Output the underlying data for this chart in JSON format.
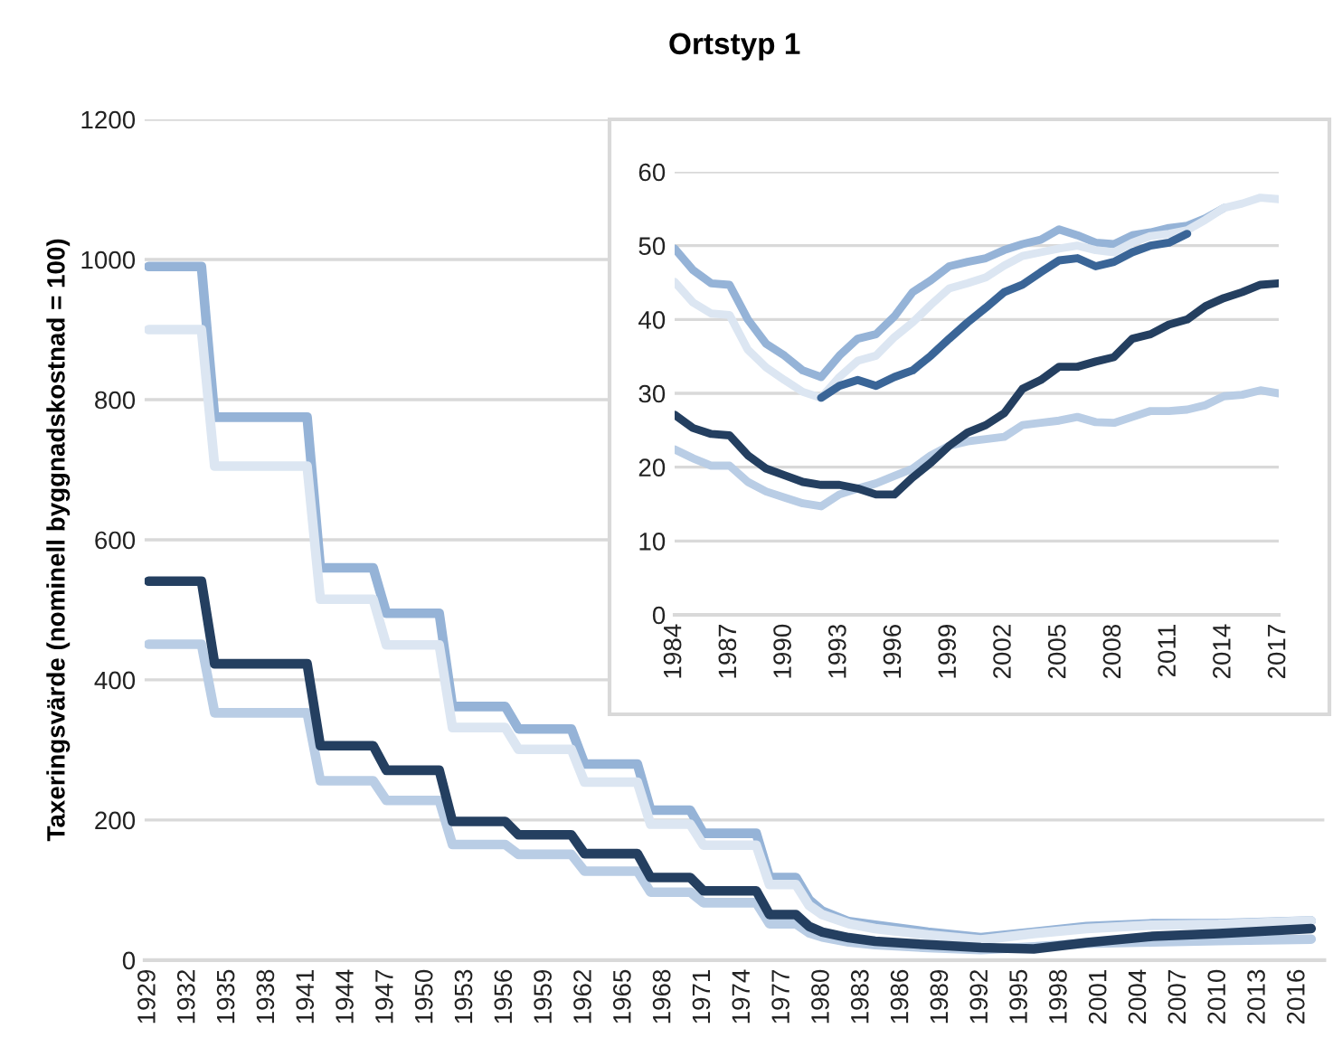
{
  "chart_data": [
    {
      "type": "line",
      "title": "Ortstyp 1",
      "ylabel": "Taxeringsvärde (nominell byggnadskostnad = 100)",
      "xlim": [
        1928.7,
        2018
      ],
      "xticks": [
        1929,
        1932,
        1935,
        1938,
        1941,
        1944,
        1947,
        1950,
        1953,
        1956,
        1959,
        1962,
        1965,
        1968,
        1971,
        1974,
        1977,
        1980,
        1983,
        1986,
        1989,
        1992,
        1995,
        1998,
        2001,
        2004,
        2007,
        2010,
        2013,
        2016
      ],
      "ylim": [
        0,
        1200
      ],
      "yticks": [
        0,
        200,
        400,
        600,
        800,
        1000,
        1200
      ],
      "grid": "y",
      "series": [
        {
          "color": "#b9cde5",
          "x": [
            1929,
            1933,
            1934,
            1941,
            1942,
            1946,
            1947,
            1951,
            1952,
            1956,
            1957,
            1961,
            1962,
            1966,
            1967,
            1970,
            1971,
            1975,
            1976,
            1978,
            1979,
            1980,
            1982,
            1984,
            1988,
            1992,
            1996,
            2000,
            2005,
            2010,
            2017
          ],
          "values": [
            451,
            451,
            353,
            353,
            256,
            256,
            228,
            228,
            165,
            165,
            151,
            151,
            127,
            127,
            97,
            97,
            82,
            82,
            52,
            52,
            39,
            33,
            26,
            22,
            18,
            15,
            19,
            24,
            26,
            28,
            30
          ]
        },
        {
          "color": "#95b3d7",
          "x": [
            1929,
            1933,
            1934,
            1941,
            1942,
            1946,
            1947,
            1951,
            1952,
            1956,
            1957,
            1961,
            1962,
            1966,
            1967,
            1970,
            1971,
            1975,
            1976,
            1978,
            1979,
            1980,
            1982,
            1984,
            1988,
            1992,
            1996,
            2000,
            2005,
            2010,
            2017
          ],
          "values": [
            990,
            990,
            775,
            775,
            560,
            560,
            495,
            495,
            362,
            362,
            330,
            330,
            280,
            280,
            214,
            214,
            181,
            181,
            118,
            118,
            86,
            70,
            55,
            50,
            40,
            32,
            40,
            48,
            52,
            52,
            56
          ]
        },
        {
          "color": "#dce6f2",
          "x": [
            1929,
            1933,
            1934,
            1941,
            1942,
            1946,
            1947,
            1951,
            1952,
            1956,
            1957,
            1961,
            1962,
            1966,
            1967,
            1970,
            1971,
            1975,
            1976,
            1978,
            1979,
            1980,
            1982,
            1984,
            1988,
            1992,
            1996,
            2000,
            2005,
            2010,
            2017
          ],
          "values": [
            900,
            900,
            705,
            705,
            515,
            515,
            450,
            450,
            332,
            332,
            301,
            301,
            254,
            254,
            194,
            194,
            164,
            164,
            108,
            108,
            78,
            65,
            52,
            45,
            36,
            29,
            38,
            45,
            50,
            51,
            56
          ]
        },
        {
          "color": "#243f60",
          "x": [
            1929,
            1933,
            1934,
            1941,
            1942,
            1946,
            1947,
            1951,
            1952,
            1956,
            1957,
            1961,
            1962,
            1966,
            1967,
            1970,
            1971,
            1975,
            1976,
            1978,
            1979,
            1980,
            1982,
            1984,
            1988,
            1992,
            1996,
            2000,
            2005,
            2010,
            2017
          ],
          "values": [
            541,
            541,
            423,
            423,
            306,
            306,
            271,
            271,
            198,
            198,
            179,
            179,
            152,
            152,
            118,
            118,
            99,
            99,
            65,
            65,
            48,
            40,
            32,
            27,
            22,
            18,
            16,
            25,
            34,
            38,
            45
          ]
        }
      ]
    },
    {
      "type": "line",
      "xlim": [
        1984,
        2017
      ],
      "xticks": [
        1984,
        1987,
        1990,
        1993,
        1996,
        1999,
        2002,
        2005,
        2008,
        2011,
        2014,
        2017
      ],
      "ylim": [
        0,
        60
      ],
      "yticks": [
        0,
        10,
        20,
        30,
        40,
        50,
        60
      ],
      "grid": "y",
      "series": [
        {
          "color": "#b9cde5",
          "x": [
            1984,
            1985,
            1986,
            1987,
            1988,
            1989,
            1990,
            1991,
            1992,
            1993,
            1994,
            1995,
            1996,
            1997,
            1998,
            1999,
            2000,
            2001,
            2002,
            2003,
            2004,
            2005,
            2006,
            2007,
            2008,
            2009,
            2010,
            2011,
            2012,
            2013,
            2014,
            2015,
            2016,
            2017
          ],
          "values": [
            22.4,
            21.2,
            20.2,
            20.2,
            18,
            16.7,
            15.9,
            15.1,
            14.7,
            16.3,
            17.1,
            17.8,
            18.8,
            19.8,
            21.6,
            22.9,
            23.5,
            23.8,
            24.1,
            25.7,
            26,
            26.3,
            26.8,
            26.1,
            26,
            26.8,
            27.6,
            27.6,
            27.8,
            28.4,
            29.6,
            29.8,
            30.4,
            30
          ]
        },
        {
          "color": "#95b3d7",
          "x": [
            1984,
            1985,
            1986,
            1987,
            1988,
            1989,
            1990,
            1991,
            1992,
            1993,
            1994,
            1995,
            1996,
            1997,
            1998,
            1999,
            2000,
            2001,
            2002,
            2003,
            2004,
            2005,
            2006,
            2007,
            2008,
            2009,
            2010,
            2011,
            2012,
            2013,
            2014
          ],
          "values": [
            49.6,
            46.7,
            44.9,
            44.7,
            40,
            36.7,
            35.1,
            33.1,
            32.2,
            35.1,
            37.4,
            38,
            40.4,
            43.7,
            45.3,
            47.2,
            47.8,
            48.3,
            49.4,
            50.2,
            50.8,
            52.2,
            51.4,
            50.4,
            50.2,
            51.4,
            51.8,
            52.4,
            52.7,
            53.7,
            55.1
          ]
        },
        {
          "color": "#dce6f2",
          "x": [
            1984,
            1985,
            1986,
            1987,
            1988,
            1989,
            1990,
            1991,
            1992,
            1993,
            1994,
            1995,
            1996,
            1997,
            1998,
            1999,
            2000,
            2001,
            2002,
            2003,
            2004,
            2005,
            2006,
            2007,
            2008,
            2009,
            2010,
            2011,
            2012,
            2013,
            2014,
            2015,
            2016,
            2017
          ],
          "values": [
            45.1,
            42.3,
            40.8,
            40.6,
            35.9,
            33.5,
            31.8,
            30.2,
            29.4,
            32.2,
            34.4,
            35.1,
            37.6,
            39.6,
            42,
            44.2,
            44.9,
            45.7,
            47.3,
            48.6,
            49.1,
            49.6,
            50,
            49.4,
            49.1,
            50.4,
            51.3,
            51.6,
            52.1,
            53.5,
            55.1,
            55.7,
            56.5,
            56.3
          ]
        },
        {
          "color": "#3a6597",
          "x": [
            1992,
            1993,
            1994,
            1995,
            1996,
            1997,
            1998,
            1999,
            2000,
            2001,
            2002,
            2003,
            2004,
            2005,
            2006,
            2007,
            2008,
            2009,
            2010,
            2011,
            2012
          ],
          "values": [
            29.4,
            31,
            31.8,
            31,
            32.2,
            33.1,
            35.1,
            37.4,
            39.6,
            41.6,
            43.7,
            44.7,
            46.4,
            48,
            48.3,
            47.2,
            47.8,
            49.1,
            50,
            50.4,
            51.6
          ]
        },
        {
          "color": "#243f60",
          "x": [
            1984,
            1985,
            1986,
            1987,
            1988,
            1989,
            1990,
            1991,
            1992,
            1993,
            1994,
            1995,
            1996,
            1997,
            1998,
            1999,
            2000,
            2001,
            2002,
            2003,
            2004,
            2005,
            2006,
            2007,
            2008,
            2009,
            2010,
            2011,
            2012,
            2013,
            2014,
            2015,
            2016,
            2017
          ],
          "values": [
            27.1,
            25.3,
            24.5,
            24.3,
            21.6,
            19.8,
            18.9,
            18,
            17.6,
            17.6,
            17.1,
            16.3,
            16.3,
            18.6,
            20.6,
            22.9,
            24.7,
            25.7,
            27.3,
            30.6,
            31.8,
            33.6,
            33.6,
            34.3,
            34.9,
            37.4,
            38,
            39.3,
            40,
            41.8,
            42.9,
            43.7,
            44.7,
            44.9
          ]
        }
      ]
    }
  ]
}
